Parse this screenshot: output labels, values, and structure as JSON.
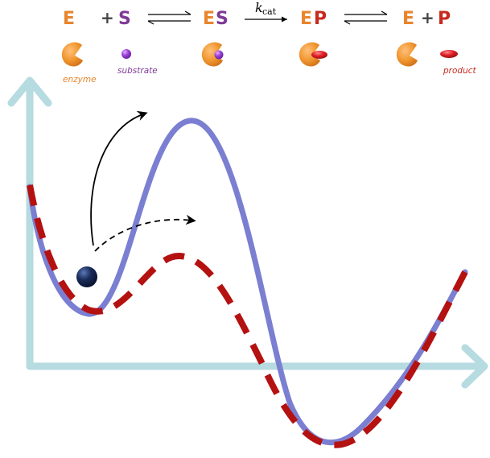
{
  "colors": {
    "enzyme": "#e8852d",
    "substrate": "#7d3a96",
    "substrate_ball": "#a044d8",
    "product": "#c72a1f",
    "product_ball": "#e0202a",
    "axes": "#b6dbe0",
    "uncatalyzed_curve": "#7b7fd1",
    "catalyzed_curve": "#b41111",
    "arrow": "#000000",
    "ball": "#1b2d5c",
    "plus": "#444444"
  },
  "equation": {
    "e1": "E",
    "plus1": "+",
    "s": "S",
    "es_e": "E",
    "es_s": "S",
    "kcat_k": "k",
    "kcat_sub": "cat",
    "ep_e": "E",
    "ep_p": "P",
    "e2": "E",
    "plus2": "+",
    "p": "P"
  },
  "captions": {
    "enzyme": "enzyme",
    "substrate": "substrate",
    "product": "product"
  },
  "icons": {
    "enzyme": "pacman-shaped-enzyme-icon",
    "substrate": "purple-sphere-icon",
    "product": "red-ellipsoid-icon",
    "ball": "navy-sphere-icon"
  }
}
